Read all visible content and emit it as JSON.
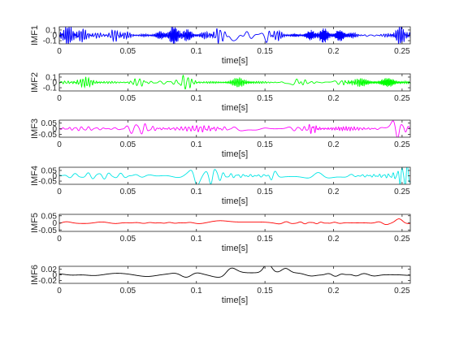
{
  "chart_data": [
    {
      "type": "line",
      "ylabel": "IMF1",
      "xlabel": "time[s]",
      "color": "#0000ff",
      "xlim": [
        0,
        0.256
      ],
      "ylim": [
        -0.16,
        0.16
      ],
      "xticks": [
        "0",
        "0.05",
        "0.1",
        "0.15",
        "0.2",
        "0.25"
      ],
      "yticks": [
        "0.1",
        "0",
        "-0.1"
      ],
      "bursts": [
        [
          0.006,
          0.016,
          0.15
        ],
        [
          0.043,
          0.007,
          0.1
        ],
        [
          0.085,
          0.011,
          0.15
        ],
        [
          0.115,
          0.009,
          0.09
        ],
        [
          0.128,
          0.01,
          0.1
        ],
        [
          0.153,
          0.009,
          0.12
        ],
        [
          0.19,
          0.009,
          0.12
        ],
        [
          0.207,
          0.007,
          0.08
        ],
        [
          0.25,
          0.007,
          0.15
        ]
      ],
      "freq": 700,
      "base": 0.02
    },
    {
      "type": "line",
      "ylabel": "IMF2",
      "xlabel": "time[s]",
      "color": "#00ff00",
      "xlim": [
        0,
        0.256
      ],
      "ylim": [
        -0.16,
        0.16
      ],
      "xticks": [
        "0",
        "0.05",
        "0.1",
        "0.15",
        "0.2",
        "0.25"
      ],
      "yticks": [
        "0.1",
        "0",
        "-0.1"
      ],
      "bursts": [
        [
          0.018,
          0.01,
          0.07
        ],
        [
          0.06,
          0.008,
          0.06
        ],
        [
          0.09,
          0.009,
          0.11
        ],
        [
          0.132,
          0.008,
          0.07
        ],
        [
          0.175,
          0.004,
          0.16
        ],
        [
          0.215,
          0.01,
          0.07
        ],
        [
          0.24,
          0.01,
          0.06
        ]
      ],
      "freq": 420,
      "base": 0.015
    },
    {
      "type": "line",
      "ylabel": "IMF3",
      "xlabel": "time[s]",
      "color": "#ff00ff",
      "xlim": [
        0,
        0.256
      ],
      "ylim": [
        -0.075,
        0.075
      ],
      "xticks": [
        "0",
        "0.05",
        "0.1",
        "0.15",
        "0.2",
        "0.25"
      ],
      "yticks": [
        "0.05",
        "0",
        "-0.05"
      ],
      "bursts": [
        [
          0.06,
          0.012,
          0.03
        ],
        [
          0.11,
          0.01,
          0.03
        ],
        [
          0.185,
          0.004,
          0.06
        ],
        [
          0.245,
          0.006,
          0.06
        ]
      ],
      "freq": 200,
      "base": 0.015
    },
    {
      "type": "line",
      "ylabel": "IMF4",
      "xlabel": "time[s]",
      "color": "#00e5e5",
      "xlim": [
        0,
        0.256
      ],
      "ylim": [
        -0.08,
        0.08
      ],
      "xticks": [
        "0",
        "0.05",
        "0.1",
        "0.15",
        "0.2",
        "0.25"
      ],
      "yticks": [
        "0.05",
        "0",
        "-0.05"
      ],
      "bursts": [
        [
          0.1,
          0.004,
          0.09
        ],
        [
          0.113,
          0.004,
          0.06
        ],
        [
          0.155,
          0.004,
          0.06
        ],
        [
          0.252,
          0.005,
          0.08
        ]
      ],
      "freq": 100,
      "base": 0.025
    },
    {
      "type": "line",
      "ylabel": "IMF5",
      "xlabel": "time[s]",
      "color": "#ff0000",
      "xlim": [
        0,
        0.256
      ],
      "ylim": [
        -0.06,
        0.06
      ],
      "xticks": [
        "0",
        "0.05",
        "0.1",
        "0.15",
        "0.2",
        "0.25"
      ],
      "yticks": [
        "0.05",
        "0",
        "-0.05"
      ],
      "bursts": [
        [
          0.117,
          0.008,
          0.018
        ],
        [
          0.233,
          0.007,
          0.04
        ],
        [
          0.25,
          0.005,
          0.06
        ]
      ],
      "freq": 50,
      "base": 0.007
    },
    {
      "type": "line",
      "ylabel": "IMF6",
      "xlabel": "time[s]",
      "color": "#000000",
      "xlim": [
        0,
        0.256
      ],
      "ylim": [
        -0.03,
        0.03
      ],
      "xticks": [
        "0",
        "0.05",
        "0.1",
        "0.15",
        "0.2",
        "0.25"
      ],
      "yticks": [
        "0.02",
        "0",
        "-0.02"
      ],
      "bursts": [
        [
          0.124,
          0.006,
          0.016
        ],
        [
          0.152,
          0.004,
          0.028
        ],
        [
          0.165,
          0.004,
          0.016
        ],
        [
          0.235,
          0.008,
          0.014
        ]
      ],
      "freq": 28,
      "base": 0.007
    }
  ]
}
